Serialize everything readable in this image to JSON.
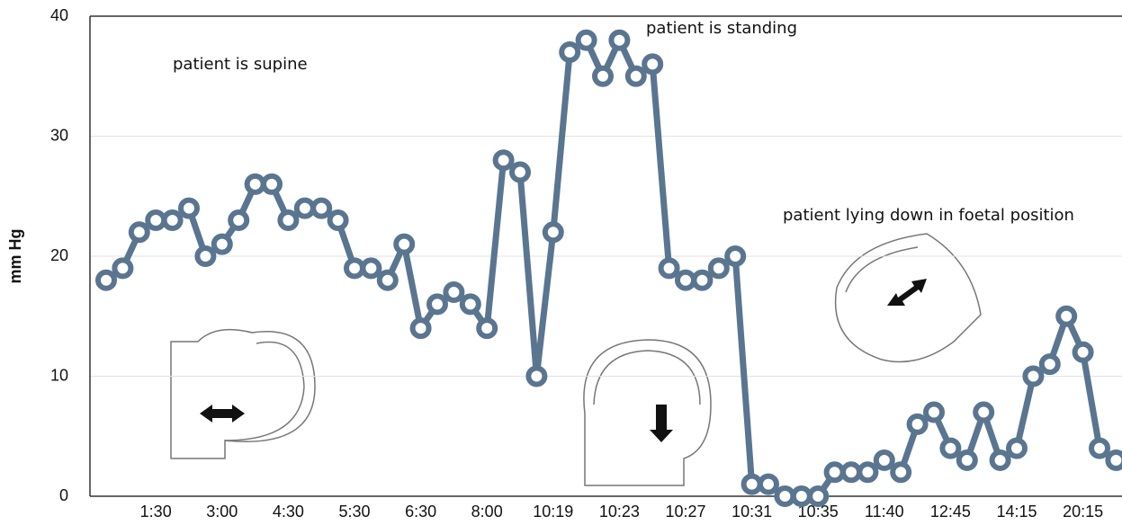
{
  "chart_data": {
    "type": "line",
    "y_label": "mm Hg",
    "categories": [
      null,
      null,
      null,
      "1:30",
      null,
      null,
      null,
      "3:00",
      null,
      null,
      null,
      "4:30",
      null,
      null,
      null,
      "5:30",
      null,
      null,
      null,
      "6:30",
      null,
      null,
      null,
      "8:00",
      null,
      null,
      null,
      "10:19",
      null,
      null,
      null,
      "10:23",
      null,
      null,
      null,
      "10:27",
      null,
      null,
      null,
      "10:31",
      null,
      null,
      null,
      "10:35",
      null,
      null,
      null,
      "11:40",
      null,
      null,
      null,
      "12:45",
      null,
      null,
      null,
      "14:15",
      null,
      null,
      null,
      "20:15",
      null,
      null
    ],
    "series": [
      {
        "color": "#5a7590",
        "values": [
          18,
          19,
          22,
          23,
          23,
          24,
          20,
          21,
          23,
          26,
          26,
          23,
          24,
          24,
          23,
          19,
          19,
          18,
          21,
          14,
          16,
          17,
          16,
          14,
          28,
          27,
          10,
          22,
          37,
          38,
          35,
          38,
          35,
          36,
          19,
          18,
          18,
          19,
          20,
          1,
          1,
          0,
          0,
          0,
          2,
          2,
          2,
          3,
          2,
          6,
          7,
          4,
          3,
          7,
          3,
          4,
          10,
          11,
          15,
          12,
          4,
          3
        ]
      }
    ],
    "ylim": [
      0,
      40
    ],
    "yticks": [
      0,
      10,
      20,
      30,
      40
    ],
    "grid": true,
    "annotations": [
      "patient is supine",
      "patient is standing",
      "patient lying down in foetal position"
    ]
  }
}
